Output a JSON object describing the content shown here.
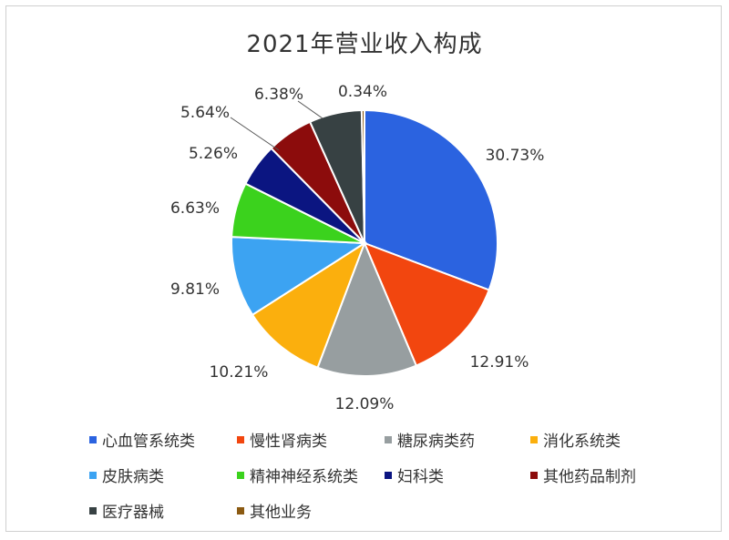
{
  "chart_data": {
    "type": "pie",
    "title": "2021年营业收入构成",
    "legend_position": "bottom",
    "slices": [
      {
        "name": "心血管系统类",
        "value": 30.73,
        "label": "30.73%",
        "color": "#2b63e0"
      },
      {
        "name": "慢性肾病类",
        "value": 12.91,
        "label": "12.91%",
        "color": "#f2460f"
      },
      {
        "name": "糖尿病类药",
        "value": 12.09,
        "label": "12.09%",
        "color": "#979ea0"
      },
      {
        "name": "消化系统类",
        "value": 10.21,
        "label": "10.21%",
        "color": "#fbaf0d"
      },
      {
        "name": "皮肤病类",
        "value": 9.81,
        "label": "9.81%",
        "color": "#3ca3f2"
      },
      {
        "name": "精神神经系统类",
        "value": 6.63,
        "label": "6.63%",
        "color": "#3bd21d"
      },
      {
        "name": "妇科类",
        "value": 5.26,
        "label": "5.26%",
        "color": "#0b1581"
      },
      {
        "name": "其他药品制剂",
        "value": 5.64,
        "label": "5.64%",
        "color": "#8c0c0c"
      },
      {
        "name": "医疗器械",
        "value": 6.38,
        "label": "6.38%",
        "color": "#374143"
      },
      {
        "name": "其他业务",
        "value": 0.34,
        "label": "0.34%",
        "color": "#8b5a12"
      }
    ]
  }
}
